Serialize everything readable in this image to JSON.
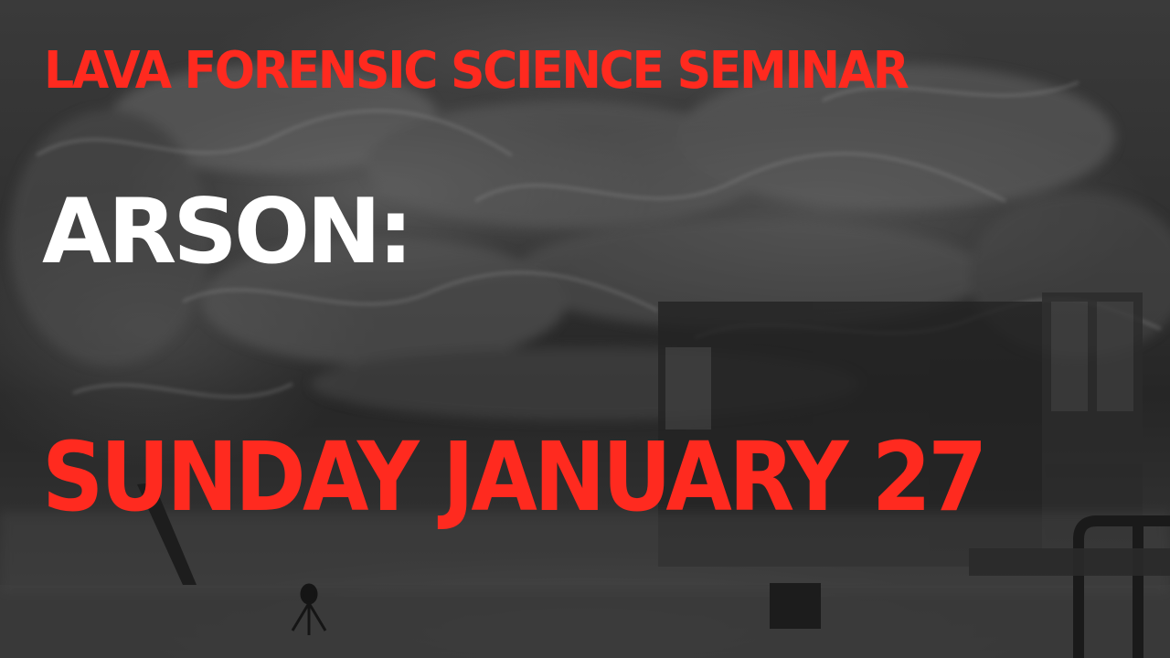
{
  "poster": {
    "seminar_title": "LAVA FORENSIC SCIENCE SEMINAR",
    "topic_title": "ARSON:",
    "date_line": "SUNDAY JANUARY 27"
  },
  "colors": {
    "accent_red": "#ff2a1f",
    "white_text": "#ffffff",
    "background_gray": "#2f2f2f"
  }
}
